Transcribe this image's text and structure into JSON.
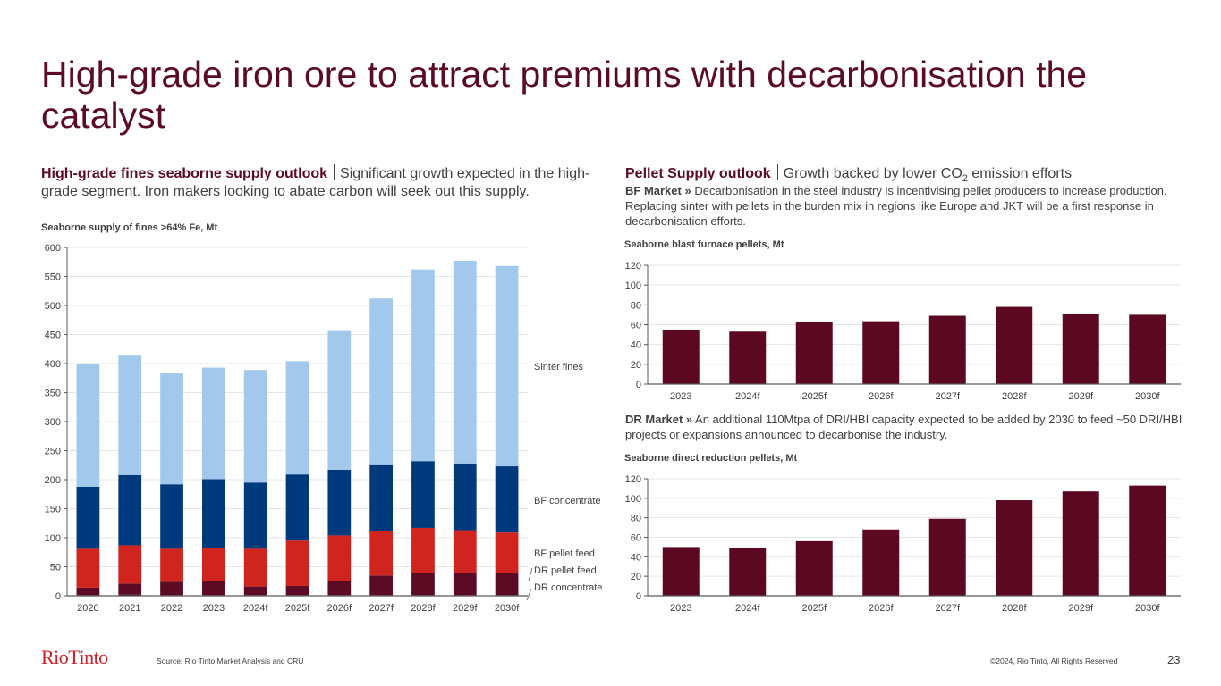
{
  "slide": {
    "title": "High-grade iron ore to attract premiums with decarbonisation the catalyst",
    "left_section": {
      "heading_bold": "High-grade fines seaborne supply outlook",
      "heading_text": "Significant growth expected in the high-grade segment. Iron makers looking to abate carbon will seek out this supply."
    },
    "right_section": {
      "heading_bold": "Pellet Supply outlook",
      "heading_text_pre": "Growth backed by lower CO",
      "heading_text_sub": "2",
      "heading_text_post": " emission efforts",
      "bf_market_label": "BF Market »",
      "bf_market_text": "Decarbonisation in the steel industry is incentivising pellet producers to increase production. Replacing sinter with pellets in the burden mix in regions like Europe and JKT will be a first response in decarbonisation efforts.",
      "dr_market_label": "DR Market »",
      "dr_market_text": "An additional 110Mtpa of DRI/HBI capacity expected to be added by 2030 to feed ~50 DRI/HBI projects or expansions announced to decarbonise the industry."
    },
    "footer": {
      "logo": "RioTinto",
      "source": "Source: Rio Tinto Market Analysis and CRU",
      "copyright": "©2024, Rio Tinto, All Rights Reserved",
      "page_number": "23"
    }
  },
  "chart_data": [
    {
      "type": "bar",
      "stacked": true,
      "title": "Seaborne supply of fines >64% Fe, Mt",
      "xlabel": "",
      "ylabel": "",
      "ylim": [
        0,
        600
      ],
      "yticks": [
        0,
        50,
        100,
        150,
        200,
        250,
        300,
        350,
        400,
        450,
        500,
        550,
        600
      ],
      "grid": true,
      "legend": "right",
      "categories": [
        "2020",
        "2021",
        "2022",
        "2023",
        "2024f",
        "2025f",
        "2026f",
        "2027f",
        "2028f",
        "2029f",
        "2030f"
      ],
      "series": [
        {
          "name": "DR concentrate",
          "color": "#4a0a1f",
          "values": [
            1,
            2,
            1,
            1,
            1,
            1,
            1,
            1,
            1,
            1,
            1
          ]
        },
        {
          "name": "DR pellet feed",
          "color": "#5b0b24",
          "values": [
            13,
            19,
            23,
            25,
            15,
            16,
            25,
            34,
            39,
            39,
            39
          ]
        },
        {
          "name": "BF pellet feed",
          "color": "#d0241f",
          "values": [
            67,
            66,
            57,
            57,
            65,
            78,
            78,
            77,
            77,
            73,
            69
          ]
        },
        {
          "name": "BF concentrate",
          "color": "#003a7d",
          "values": [
            107,
            121,
            111,
            118,
            114,
            114,
            113,
            113,
            115,
            115,
            114
          ]
        },
        {
          "name": "Sinter fines",
          "color": "#a2c9ec",
          "values": [
            211,
            207,
            191,
            192,
            194,
            195,
            239,
            287,
            330,
            349,
            345
          ]
        }
      ]
    },
    {
      "type": "bar",
      "title": "Seaborne blast furnace pellets, Mt",
      "xlabel": "",
      "ylabel": "",
      "ylim": [
        0,
        120
      ],
      "yticks": [
        0,
        20,
        40,
        60,
        80,
        100,
        120
      ],
      "grid": true,
      "color": "#5b0820",
      "categories": [
        "2023",
        "2024f",
        "2025f",
        "2026f",
        "2027f",
        "2028f",
        "2029f",
        "2030f"
      ],
      "values": [
        55,
        53,
        63,
        63.5,
        69,
        78,
        71,
        70
      ]
    },
    {
      "type": "bar",
      "title": "Seaborne direct reduction pellets, Mt",
      "xlabel": "",
      "ylabel": "",
      "ylim": [
        0,
        120
      ],
      "yticks": [
        0,
        20,
        40,
        60,
        80,
        100,
        120
      ],
      "grid": true,
      "color": "#5b0820",
      "categories": [
        "2023",
        "2024f",
        "2025f",
        "2026f",
        "2027f",
        "2028f",
        "2029f",
        "2030f"
      ],
      "values": [
        50,
        49,
        56,
        68,
        79,
        98,
        107,
        113
      ]
    }
  ]
}
